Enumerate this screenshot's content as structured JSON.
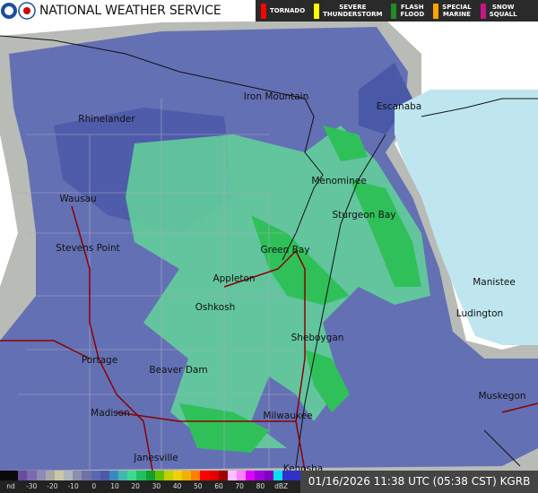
{
  "header": {
    "title": "NATIONAL WEATHER SERVICE",
    "logo_icon": "noaa-nws-logo"
  },
  "legend": [
    {
      "label": "TORNADO",
      "color": "#ff0000"
    },
    {
      "label": "SEVERE\nTHUNDERSTORM",
      "color": "#ffff00"
    },
    {
      "label": "FLASH\nFLOOD",
      "color": "#228b22"
    },
    {
      "label": "SPECIAL\nMARINE",
      "color": "#ffa500"
    },
    {
      "label": "SNOW\nSQUALL",
      "color": "#c71585"
    }
  ],
  "cities": [
    "Iron Mountain",
    "Escanaba",
    "Rhinelander",
    "Menominee",
    "Sturgeon Bay",
    "Wausau",
    "Green Bay",
    "Stevens Point",
    "Manistee",
    "Appleton",
    "Ludington",
    "Oshkosh",
    "Sheboygan",
    "Portage",
    "Beaver Dam",
    "Muskegon",
    "Madison",
    "Milwaukee",
    "Janesville",
    "Kenosha"
  ],
  "scale": {
    "ticks": [
      "nd",
      "-30",
      "-20",
      "-10",
      "0",
      "10",
      "20",
      "30",
      "40",
      "50",
      "60",
      "70",
      "80",
      "dBZ"
    ],
    "colors": [
      "#0a0a0a",
      "#0a0a0a",
      "#6a4c9c",
      "#7a68b0",
      "#8c8cb4",
      "#a8a8a8",
      "#c8c8a8",
      "#b0b4bc",
      "#8a8eb0",
      "#6e72a6",
      "#5868b0",
      "#4a5aa8",
      "#3a8ac0",
      "#40b8b0",
      "#40d890",
      "#20c060",
      "#10a030",
      "#60c000",
      "#c0d000",
      "#f0d000",
      "#f0b000",
      "#ff8000",
      "#ff0000",
      "#e00000",
      "#a00000",
      "#ffc0ff",
      "#ff80ff",
      "#e000ff",
      "#a000e0",
      "#8000c0",
      "#00e0f0",
      "#3030d0",
      "#3030d0"
    ]
  },
  "timestamp": "01/16/2026 11:38 UTC (05:38 CST) KGRB",
  "colors": {
    "lake": "#bfe6ee",
    "radar_light": "#6470b4",
    "radar_dark": "#4a58a8",
    "green_light": "#62d49a",
    "green": "#2fc05a",
    "ground_clutter": "#b9bbb6"
  }
}
